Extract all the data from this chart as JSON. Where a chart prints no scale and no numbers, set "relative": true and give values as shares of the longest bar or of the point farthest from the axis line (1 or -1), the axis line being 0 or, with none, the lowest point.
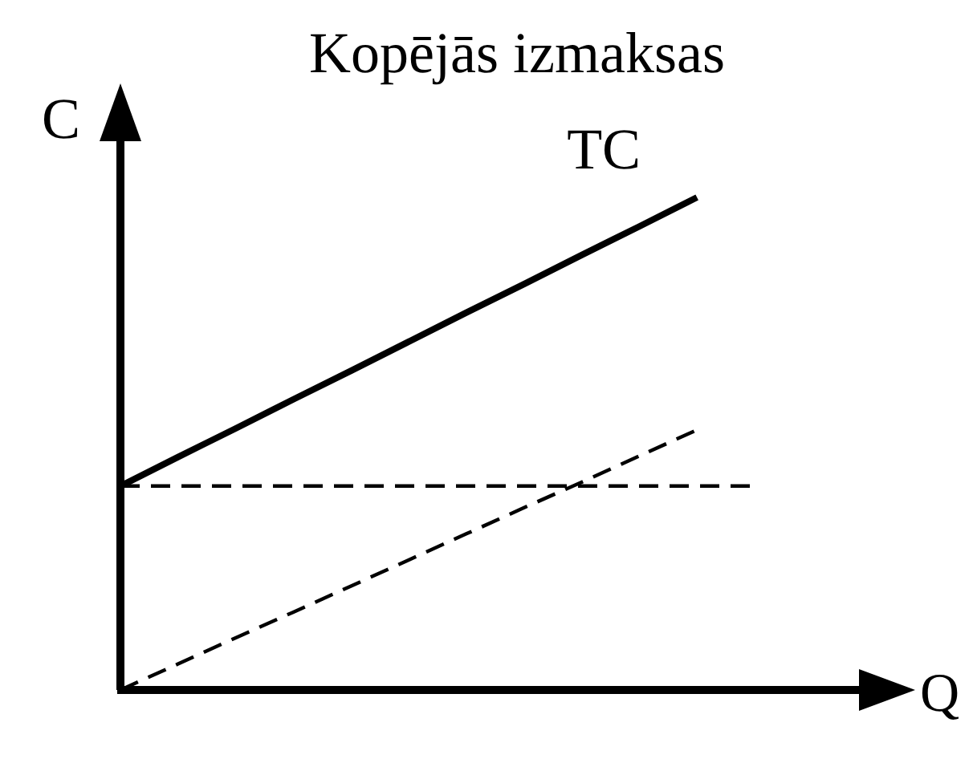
{
  "chart_data": {
    "type": "line",
    "title": "Kopējās izmaksas",
    "xlabel": "Q",
    "ylabel": "C",
    "relative": true,
    "categories": [
      null,
      null,
      null,
      null,
      null,
      null,
      null,
      null,
      null,
      null,
      null,
      null
    ],
    "series": [
      {
        "name": "TC",
        "color": "#000000",
        "line_style": "solid",
        "values": [
          0.414,
          0.473,
          0.531,
          0.59,
          0.648,
          0.707,
          0.766,
          0.824,
          0.883,
          0.941,
          1,
          null
        ]
      },
      {
        "color": "#000000",
        "line_style": "dashed",
        "values": [
          0.414,
          0.414,
          0.414,
          0.414,
          0.414,
          0.414,
          0.414,
          0.414,
          0.414,
          0.414,
          0.414,
          0.414
        ]
      },
      {
        "color": "#000000",
        "line_style": "dashed",
        "values": [
          0,
          0.053,
          0.106,
          0.158,
          0.211,
          0.264,
          0.317,
          0.37,
          0.422,
          0.475,
          0.528,
          null
        ]
      }
    ],
    "marker": "none"
  }
}
